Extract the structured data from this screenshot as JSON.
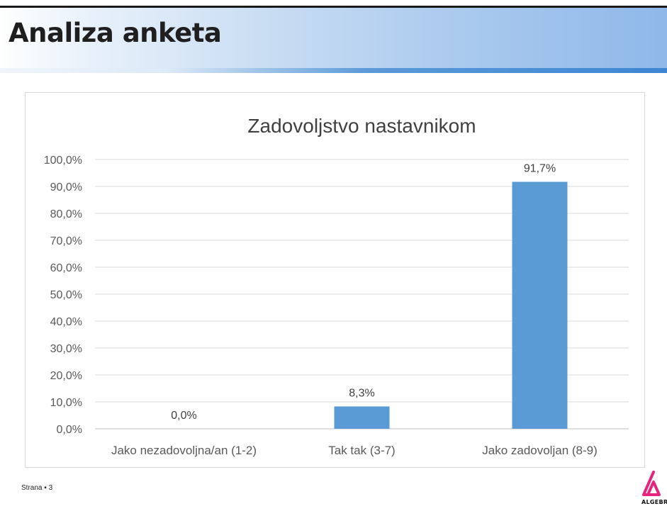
{
  "slide": {
    "title": "Analiza anketa",
    "footer": "Strana ▪ 3"
  },
  "logo": {
    "text": "ALGEBR",
    "color": "#e6247e"
  },
  "chart_data": {
    "type": "bar",
    "title": "Zadovoljstvo nastavnikom",
    "categories": [
      "Jako nezadovoljna/an (1-2)",
      "Tak tak (3-7)",
      "Jako zadovoljan (8-9)"
    ],
    "values": [
      0.0,
      8.3,
      91.7
    ],
    "data_labels": [
      "0,0%",
      "8,3%",
      "91,7%"
    ],
    "yticks": [
      "0,0%",
      "10,0%",
      "20,0%",
      "30,0%",
      "40,0%",
      "50,0%",
      "60,0%",
      "70,0%",
      "80,0%",
      "90,0%",
      "100,0%"
    ],
    "ylim": [
      0,
      100
    ],
    "grid": true,
    "legend": "none",
    "bar_color": "#5b9bd5"
  }
}
